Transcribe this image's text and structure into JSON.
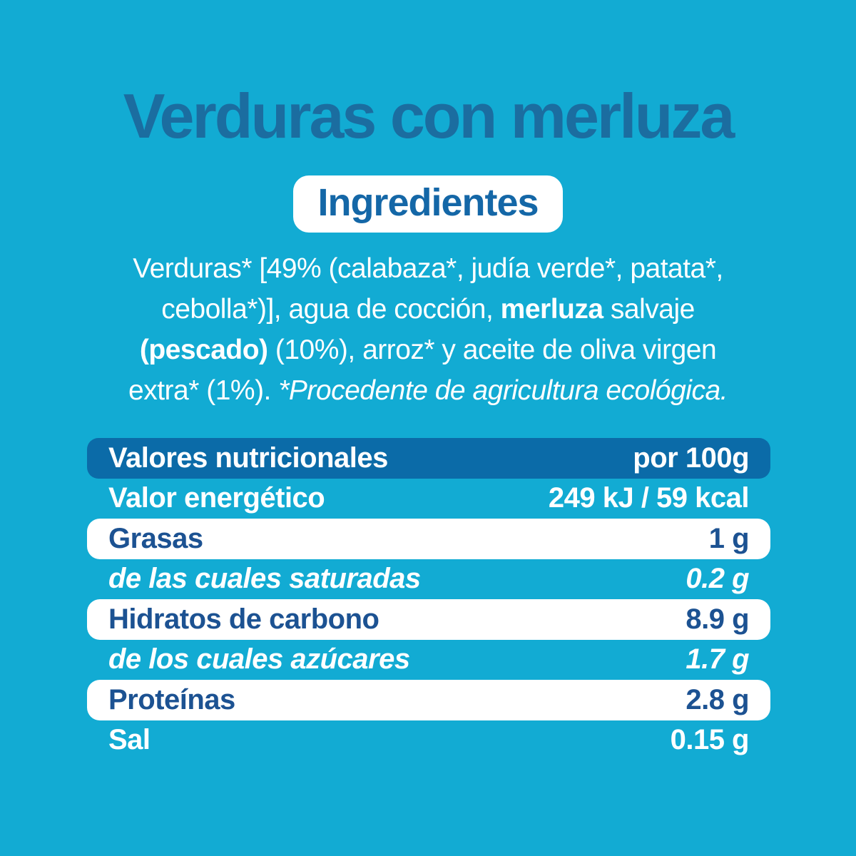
{
  "colors": {
    "background": "#12abd3",
    "title_blue": "#1b6da0",
    "pill_text_blue": "#1467a7",
    "header_row_blue": "#0b6ba8",
    "table_text_navy": "#1c5292",
    "white": "#ffffff"
  },
  "page": {
    "title": "Verduras con merluza",
    "ingredients_label": "Ingredientes",
    "ingredients_lines": [
      [
        {
          "t": "Verduras* [49% (calabaza*, judía verde*, patata*,"
        }
      ],
      [
        {
          "t": "cebolla*)], agua de cocción, "
        },
        {
          "t": "merluza",
          "b": true
        },
        {
          "t": " salvaje"
        }
      ],
      [
        {
          "t": "(pescado)",
          "b": true
        },
        {
          "t": " (10%), arroz* y aceite de oliva virgen"
        }
      ],
      [
        {
          "t": "extra* (1%). "
        },
        {
          "t": "*Procedente de agricultura ecológica.",
          "i": true
        }
      ]
    ]
  },
  "nutrition": {
    "header": {
      "label": "Valores nutricionales",
      "value": "por 100g"
    },
    "rows": [
      {
        "label": "Valor energético",
        "value": "249 kJ / 59 kcal",
        "style": "plain"
      },
      {
        "label": "Grasas",
        "value": "1 g",
        "style": "white"
      },
      {
        "label": "de las cuales saturadas",
        "value": "0.2 g",
        "style": "plain-italic"
      },
      {
        "label": "Hidratos de carbono",
        "value": "8.9 g",
        "style": "white"
      },
      {
        "label": "de los cuales azúcares",
        "value": "1.7 g",
        "style": "plain-italic"
      },
      {
        "label": "Proteínas",
        "value": "2.8 g",
        "style": "white"
      },
      {
        "label": "Sal",
        "value": "0.15 g",
        "style": "plain"
      }
    ]
  }
}
